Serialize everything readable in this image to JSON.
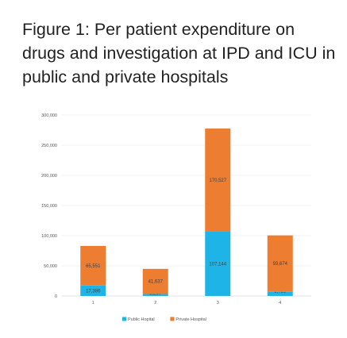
{
  "title": "Figure 1: Per patient expenditure on drugs and investigation at IPD and ICU in public and private hospitals",
  "chart_data": {
    "type": "bar",
    "stacked": true,
    "title": "Figure 1: Per patient expenditure on drugs and investigation at IPD and ICU in public and private hospitals",
    "xlabel": "",
    "ylabel": "",
    "categories": [
      "1",
      "2",
      "3",
      "4"
    ],
    "ylim": [
      0,
      300000
    ],
    "yticks": [
      0,
      50000,
      100000,
      150000,
      200000,
      250000,
      300000
    ],
    "ytick_labels": [
      "0",
      "50,000",
      "100,000",
      "150,000",
      "200,000",
      "250,000",
      "300,000"
    ],
    "grid": true,
    "legend_position": "bottom",
    "series": [
      {
        "name": "Public Hopital",
        "color": "#1fb4e8",
        "values": [
          17386,
          3297,
          107144,
          6789
        ],
        "labels": [
          "17,386",
          "3,297",
          "107,144",
          "6,789"
        ]
      },
      {
        "name": "Private Hospital",
        "color": "#ed7d31",
        "values": [
          65551,
          41637,
          170527,
          93674
        ],
        "labels": [
          "65,551",
          "41,637",
          "170,527",
          "93,674"
        ]
      }
    ]
  }
}
